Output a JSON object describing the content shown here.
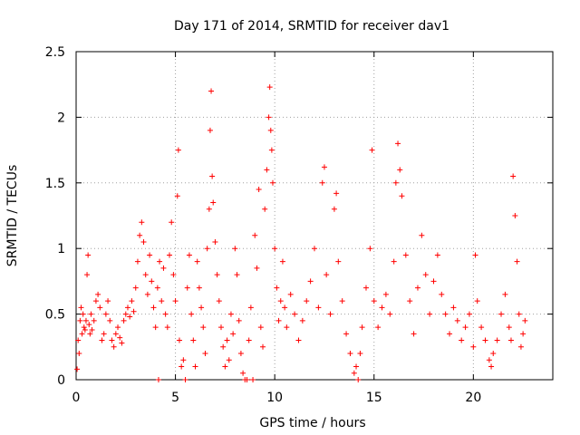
{
  "chart_data": {
    "type": "scatter",
    "title": "Day 171 of 2014, SRMTID for receiver dav1",
    "xlabel": "GPS time / hours",
    "ylabel": "SRMTID / TECUs",
    "xlim": [
      0,
      24
    ],
    "ylim": [
      0,
      2.5
    ],
    "x_ticks": [
      0,
      5,
      10,
      15,
      20
    ],
    "x_tick_labels": [
      "0",
      "5",
      "10",
      "15",
      "20"
    ],
    "y_ticks": [
      0,
      0.5,
      1,
      1.5,
      2,
      2.5
    ],
    "y_tick_labels": [
      "0",
      "0.5",
      "1",
      "1.5",
      "2",
      "2.5"
    ],
    "grid": true,
    "marker": "plus",
    "color": "#ff0000",
    "series": [
      {
        "name": "dav1",
        "points": [
          [
            0.05,
            0.08
          ],
          [
            0.1,
            0.3
          ],
          [
            0.15,
            0.2
          ],
          [
            0.2,
            0.45
          ],
          [
            0.25,
            0.55
          ],
          [
            0.3,
            0.35
          ],
          [
            0.35,
            0.5
          ],
          [
            0.4,
            0.4
          ],
          [
            0.45,
            0.38
          ],
          [
            0.5,
            0.45
          ],
          [
            0.55,
            0.8
          ],
          [
            0.6,
            0.95
          ],
          [
            0.65,
            0.42
          ],
          [
            0.7,
            0.35
          ],
          [
            0.75,
            0.5
          ],
          [
            0.8,
            0.38
          ],
          [
            0.9,
            0.45
          ],
          [
            1.0,
            0.6
          ],
          [
            1.1,
            0.65
          ],
          [
            1.2,
            0.55
          ],
          [
            1.3,
            0.3
          ],
          [
            1.4,
            0.35
          ],
          [
            1.5,
            0.5
          ],
          [
            1.6,
            0.6
          ],
          [
            1.7,
            0.45
          ],
          [
            1.8,
            0.3
          ],
          [
            1.9,
            0.25
          ],
          [
            2.0,
            0.35
          ],
          [
            2.1,
            0.4
          ],
          [
            2.2,
            0.32
          ],
          [
            2.3,
            0.28
          ],
          [
            2.4,
            0.45
          ],
          [
            2.5,
            0.5
          ],
          [
            2.6,
            0.55
          ],
          [
            2.7,
            0.48
          ],
          [
            2.8,
            0.6
          ],
          [
            2.9,
            0.52
          ],
          [
            3.0,
            0.7
          ],
          [
            3.1,
            0.9
          ],
          [
            3.2,
            1.1
          ],
          [
            3.3,
            1.2
          ],
          [
            3.4,
            1.05
          ],
          [
            3.5,
            0.8
          ],
          [
            3.6,
            0.65
          ],
          [
            3.7,
            0.95
          ],
          [
            3.8,
            0.75
          ],
          [
            3.9,
            0.55
          ],
          [
            4.0,
            0.4
          ],
          [
            4.1,
            0.7
          ],
          [
            4.15,
            0.0
          ],
          [
            4.2,
            0.9
          ],
          [
            4.3,
            0.6
          ],
          [
            4.4,
            0.85
          ],
          [
            4.5,
            0.5
          ],
          [
            4.6,
            0.4
          ],
          [
            4.7,
            0.95
          ],
          [
            4.8,
            1.2
          ],
          [
            4.9,
            0.8
          ],
          [
            5.0,
            0.6
          ],
          [
            5.1,
            1.4
          ],
          [
            5.15,
            1.75
          ],
          [
            5.2,
            0.3
          ],
          [
            5.3,
            0.1
          ],
          [
            5.4,
            0.15
          ],
          [
            5.5,
            0.0
          ],
          [
            5.6,
            0.7
          ],
          [
            5.7,
            0.95
          ],
          [
            5.8,
            0.5
          ],
          [
            5.9,
            0.3
          ],
          [
            6.0,
            0.1
          ],
          [
            6.1,
            0.9
          ],
          [
            6.2,
            0.7
          ],
          [
            6.3,
            0.55
          ],
          [
            6.4,
            0.4
          ],
          [
            6.5,
            0.2
          ],
          [
            6.6,
            1.0
          ],
          [
            6.7,
            1.3
          ],
          [
            6.75,
            1.9
          ],
          [
            6.8,
            2.2
          ],
          [
            6.85,
            1.55
          ],
          [
            6.9,
            1.35
          ],
          [
            7.0,
            1.05
          ],
          [
            7.1,
            0.8
          ],
          [
            7.2,
            0.6
          ],
          [
            7.3,
            0.4
          ],
          [
            7.4,
            0.25
          ],
          [
            7.5,
            0.1
          ],
          [
            7.6,
            0.3
          ],
          [
            7.7,
            0.15
          ],
          [
            7.8,
            0.5
          ],
          [
            7.9,
            0.35
          ],
          [
            8.0,
            1.0
          ],
          [
            8.1,
            0.8
          ],
          [
            8.2,
            0.45
          ],
          [
            8.3,
            0.2
          ],
          [
            8.4,
            0.05
          ],
          [
            8.5,
            0.0
          ],
          [
            8.6,
            0.0
          ],
          [
            8.7,
            0.3
          ],
          [
            8.8,
            0.55
          ],
          [
            8.9,
            0.0
          ],
          [
            9.0,
            1.1
          ],
          [
            9.1,
            0.85
          ],
          [
            9.2,
            1.45
          ],
          [
            9.3,
            0.4
          ],
          [
            9.4,
            0.25
          ],
          [
            9.5,
            1.3
          ],
          [
            9.6,
            1.6
          ],
          [
            9.7,
            2.0
          ],
          [
            9.75,
            2.23
          ],
          [
            9.8,
            1.9
          ],
          [
            9.85,
            1.75
          ],
          [
            9.9,
            1.5
          ],
          [
            10.0,
            1.0
          ],
          [
            10.1,
            0.7
          ],
          [
            10.2,
            0.45
          ],
          [
            10.3,
            0.6
          ],
          [
            10.4,
            0.9
          ],
          [
            10.5,
            0.55
          ],
          [
            10.6,
            0.4
          ],
          [
            10.8,
            0.65
          ],
          [
            11.0,
            0.5
          ],
          [
            11.2,
            0.3
          ],
          [
            11.4,
            0.45
          ],
          [
            11.6,
            0.6
          ],
          [
            11.8,
            0.75
          ],
          [
            12.0,
            1.0
          ],
          [
            12.2,
            0.55
          ],
          [
            12.4,
            1.5
          ],
          [
            12.5,
            1.62
          ],
          [
            12.6,
            0.8
          ],
          [
            12.8,
            0.5
          ],
          [
            13.0,
            1.3
          ],
          [
            13.1,
            1.42
          ],
          [
            13.2,
            0.9
          ],
          [
            13.4,
            0.6
          ],
          [
            13.6,
            0.35
          ],
          [
            13.8,
            0.2
          ],
          [
            14.0,
            0.05
          ],
          [
            14.1,
            0.1
          ],
          [
            14.2,
            0.0
          ],
          [
            14.3,
            0.2
          ],
          [
            14.4,
            0.4
          ],
          [
            14.6,
            0.7
          ],
          [
            14.8,
            1.0
          ],
          [
            14.9,
            1.75
          ],
          [
            15.0,
            0.6
          ],
          [
            15.2,
            0.4
          ],
          [
            15.4,
            0.55
          ],
          [
            15.6,
            0.65
          ],
          [
            15.8,
            0.5
          ],
          [
            16.0,
            0.9
          ],
          [
            16.1,
            1.5
          ],
          [
            16.2,
            1.8
          ],
          [
            16.3,
            1.6
          ],
          [
            16.4,
            1.4
          ],
          [
            16.6,
            0.95
          ],
          [
            16.8,
            0.6
          ],
          [
            17.0,
            0.35
          ],
          [
            17.2,
            0.7
          ],
          [
            17.4,
            1.1
          ],
          [
            17.6,
            0.8
          ],
          [
            17.8,
            0.5
          ],
          [
            18.0,
            0.75
          ],
          [
            18.2,
            0.95
          ],
          [
            18.4,
            0.65
          ],
          [
            18.6,
            0.5
          ],
          [
            18.8,
            0.35
          ],
          [
            19.0,
            0.55
          ],
          [
            19.2,
            0.45
          ],
          [
            19.4,
            0.3
          ],
          [
            19.6,
            0.4
          ],
          [
            19.8,
            0.5
          ],
          [
            20.0,
            0.25
          ],
          [
            20.1,
            0.95
          ],
          [
            20.2,
            0.6
          ],
          [
            20.4,
            0.4
          ],
          [
            20.6,
            0.3
          ],
          [
            20.8,
            0.15
          ],
          [
            20.9,
            0.1
          ],
          [
            21.0,
            0.2
          ],
          [
            21.2,
            0.3
          ],
          [
            21.4,
            0.5
          ],
          [
            21.6,
            0.65
          ],
          [
            21.8,
            0.4
          ],
          [
            21.9,
            0.3
          ],
          [
            22.0,
            1.55
          ],
          [
            22.1,
            1.25
          ],
          [
            22.2,
            0.9
          ],
          [
            22.3,
            0.5
          ],
          [
            22.4,
            0.25
          ],
          [
            22.5,
            0.35
          ],
          [
            22.6,
            0.45
          ]
        ]
      }
    ]
  }
}
